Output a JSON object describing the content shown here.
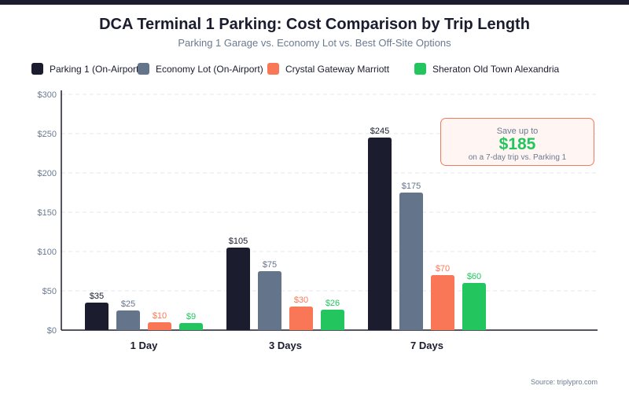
{
  "chart_data": {
    "type": "bar",
    "title": "DCA Terminal 1 Parking: Cost Comparison by Trip Length",
    "subtitle": "Parking 1 Garage vs. Economy Lot vs. Best Off-Site Options",
    "categories": [
      "1 Day",
      "3 Days",
      "7 Days"
    ],
    "series": [
      {
        "name": "Parking 1 (On-Airport)",
        "color": "#1b1c2e",
        "values": [
          35,
          105,
          245
        ]
      },
      {
        "name": "Economy Lot (On-Airport)",
        "color": "#64748b",
        "values": [
          25,
          75,
          175
        ]
      },
      {
        "name": "Crystal Gateway Marriott",
        "color": "#f97757",
        "values": [
          10,
          30,
          70
        ]
      },
      {
        "name": "Sheraton Old Town Alexandria",
        "color": "#22c55e",
        "values": [
          9,
          26,
          60
        ]
      }
    ],
    "ylim": [
      0,
      300
    ],
    "yticks": [
      0,
      50,
      100,
      150,
      200,
      250,
      300
    ],
    "ytick_prefix": "$",
    "grid": true,
    "legend_placement": "top",
    "annotation": {
      "line1": "Save up to",
      "amount": "$185",
      "line2": "on a 7-day trip vs. Parking 1"
    },
    "source": "Source: triplypro.com"
  }
}
